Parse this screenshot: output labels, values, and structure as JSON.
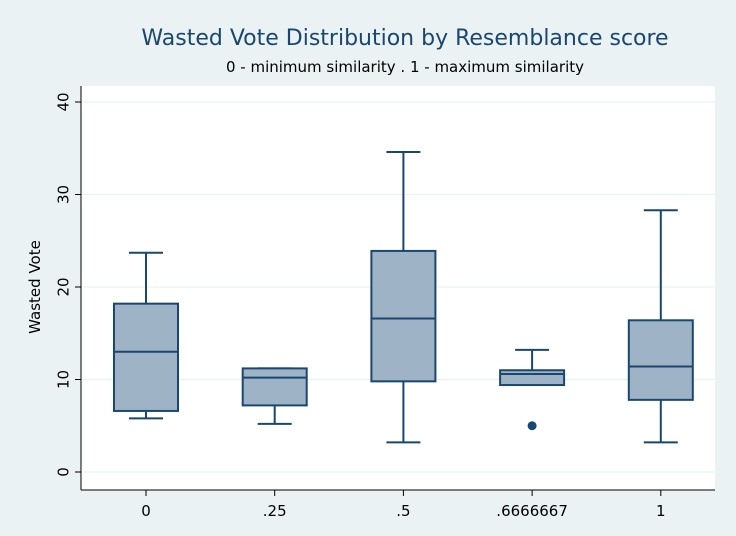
{
  "chart_data": {
    "type": "box",
    "title": "Wasted Vote Distribution by Resemblance score",
    "subtitle": "0 - minimum similarity . 1 - maximum similarity",
    "ylabel": "Wasted Vote",
    "xlabel": "",
    "ylim": [
      0,
      40
    ],
    "yticks": [
      "0",
      "10",
      "20",
      "30",
      "40"
    ],
    "grid": true,
    "legend": "none",
    "categories": [
      "0",
      ".25",
      ".5",
      ".6666667",
      "1"
    ],
    "boxes": [
      {
        "category": "0",
        "whisker_low": 5.8,
        "q1": 6.6,
        "median": 13.0,
        "q3": 18.2,
        "whisker_high": 23.7,
        "outliers": []
      },
      {
        "category": ".25",
        "whisker_low": 5.2,
        "q1": 7.2,
        "median": 10.2,
        "q3": 11.2,
        "whisker_high": 11.2,
        "outliers": []
      },
      {
        "category": ".5",
        "whisker_low": 3.2,
        "q1": 9.8,
        "median": 16.6,
        "q3": 23.9,
        "whisker_high": 34.6,
        "outliers": []
      },
      {
        "category": ".6666667",
        "whisker_low": 9.4,
        "q1": 9.4,
        "median": 10.6,
        "q3": 11.0,
        "whisker_high": 13.2,
        "outliers": [
          5.0
        ]
      },
      {
        "category": "1",
        "whisker_low": 3.2,
        "q1": 7.8,
        "median": 11.4,
        "q3": 16.4,
        "whisker_high": 28.3,
        "outliers": []
      }
    ],
    "colors": {
      "box_fill": "#9fb3c6",
      "box_stroke": "#1a476f",
      "outlier": "#1a476f",
      "background": "#eaf2f3",
      "plot_background": "#ffffff",
      "grid": "#eaf2f3",
      "title": "#1a476f"
    }
  }
}
